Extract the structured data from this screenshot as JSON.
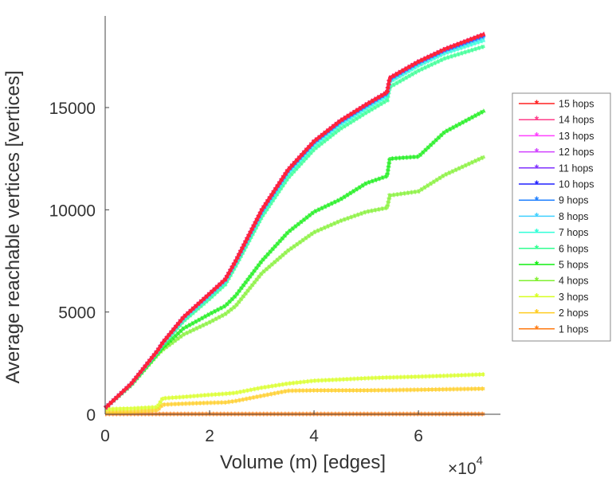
{
  "chart_data": {
    "type": "line",
    "title": "",
    "xlabel": "Volume (m) [edges]",
    "ylabel": "Average reachable vertices [vertices]",
    "x_multiplier_label": "×10",
    "x_multiplier_exp": "4",
    "xlim": [
      0,
      7.57
    ],
    "ylim": [
      0,
      19450
    ],
    "xticks": [
      0,
      2,
      4,
      6
    ],
    "xtick_labels": [
      "0",
      "2",
      "4",
      "6"
    ],
    "yticks": [
      0,
      5000,
      10000,
      15000
    ],
    "ytick_labels": [
      "0",
      "5000",
      "10000",
      "15000"
    ],
    "grid": false,
    "legend_position": "right",
    "x": [
      0,
      0.5,
      1,
      1.1,
      1.5,
      2,
      2.3,
      2.5,
      3,
      3.5,
      4,
      4.5,
      5,
      5.4,
      5.45,
      6,
      6.5,
      7.27
    ],
    "series": [
      {
        "name": "15 hops",
        "color": "#ff2020",
        "values": [
          300,
          1500,
          3100,
          3500,
          4750,
          5900,
          6600,
          7500,
          10000,
          11950,
          13350,
          14350,
          15150,
          15750,
          16450,
          17250,
          17850,
          18600
        ]
      },
      {
        "name": "14 hops",
        "color": "#ff3d8a",
        "values": [
          300,
          1500,
          3100,
          3500,
          4750,
          5900,
          6600,
          7500,
          10000,
          11950,
          13350,
          14350,
          15150,
          15750,
          16450,
          17250,
          17850,
          18600
        ]
      },
      {
        "name": "13 hops",
        "color": "#ff40ff",
        "values": [
          300,
          1500,
          3100,
          3500,
          4750,
          5900,
          6600,
          7500,
          10000,
          11950,
          13350,
          14350,
          15150,
          15750,
          16450,
          17250,
          17850,
          18600
        ]
      },
      {
        "name": "12 hops",
        "color": "#d040ff",
        "values": [
          300,
          1500,
          3100,
          3500,
          4750,
          5900,
          6600,
          7500,
          10000,
          11950,
          13350,
          14350,
          15150,
          15750,
          16450,
          17250,
          17850,
          18600
        ]
      },
      {
        "name": "11 hops",
        "color": "#8030ff",
        "values": [
          300,
          1500,
          3100,
          3500,
          4750,
          5900,
          6600,
          7500,
          10000,
          11950,
          13350,
          14350,
          15150,
          15750,
          16450,
          17250,
          17850,
          18600
        ]
      },
      {
        "name": "10 hops",
        "color": "#2020ff",
        "values": [
          300,
          1500,
          3100,
          3500,
          4750,
          5900,
          6600,
          7500,
          9980,
          11930,
          13330,
          14330,
          15130,
          15730,
          16430,
          17230,
          17830,
          18570
        ]
      },
      {
        "name": "9 hops",
        "color": "#2080ff",
        "values": [
          300,
          1500,
          3100,
          3500,
          4740,
          5880,
          6580,
          7480,
          9950,
          11900,
          13300,
          14300,
          15100,
          15700,
          16400,
          17200,
          17800,
          18520
        ]
      },
      {
        "name": "8 hops",
        "color": "#40d0ff",
        "values": [
          300,
          1500,
          3080,
          3480,
          4700,
          5840,
          6540,
          7440,
          9900,
          11850,
          13250,
          14250,
          15050,
          15650,
          16350,
          17150,
          17750,
          18450
        ]
      },
      {
        "name": "7 hops",
        "color": "#30ffd8",
        "values": [
          300,
          1480,
          3050,
          3450,
          4650,
          5780,
          6480,
          7380,
          9820,
          11750,
          13150,
          14150,
          14950,
          15550,
          16250,
          17050,
          17650,
          18300
        ]
      },
      {
        "name": "6 hops",
        "color": "#30ff90",
        "values": [
          300,
          1460,
          3000,
          3380,
          4550,
          5650,
          6350,
          7250,
          9650,
          11550,
          12950,
          13950,
          14750,
          15350,
          16000,
          16800,
          17400,
          18000
        ]
      },
      {
        "name": "5 hops",
        "color": "#10ee10",
        "values": [
          300,
          1450,
          2950,
          3250,
          4200,
          4900,
          5300,
          5800,
          7500,
          8900,
          9900,
          10500,
          11300,
          11650,
          12500,
          12600,
          13800,
          14850
        ]
      },
      {
        "name": "4 hops",
        "color": "#80f030",
        "values": [
          300,
          1430,
          2900,
          3150,
          3900,
          4500,
          4900,
          5300,
          6900,
          8000,
          8900,
          9450,
          9900,
          10100,
          10700,
          10900,
          11700,
          12600
        ]
      },
      {
        "name": "3 hops",
        "color": "#d8ff20",
        "values": [
          250,
          280,
          350,
          780,
          850,
          950,
          1000,
          1050,
          1300,
          1500,
          1640,
          1700,
          1760,
          1800,
          1800,
          1840,
          1880,
          1950
        ]
      },
      {
        "name": "2 hops",
        "color": "#ffcc20",
        "values": [
          100,
          120,
          200,
          470,
          520,
          560,
          580,
          650,
          900,
          1150,
          1170,
          1170,
          1170,
          1180,
          1180,
          1200,
          1220,
          1250
        ]
      },
      {
        "name": "1 hops",
        "color": "#ff7a10",
        "values": [
          15,
          15,
          15,
          15,
          15,
          15,
          15,
          15,
          15,
          15,
          15,
          15,
          15,
          15,
          15,
          15,
          15,
          15
        ]
      }
    ]
  }
}
